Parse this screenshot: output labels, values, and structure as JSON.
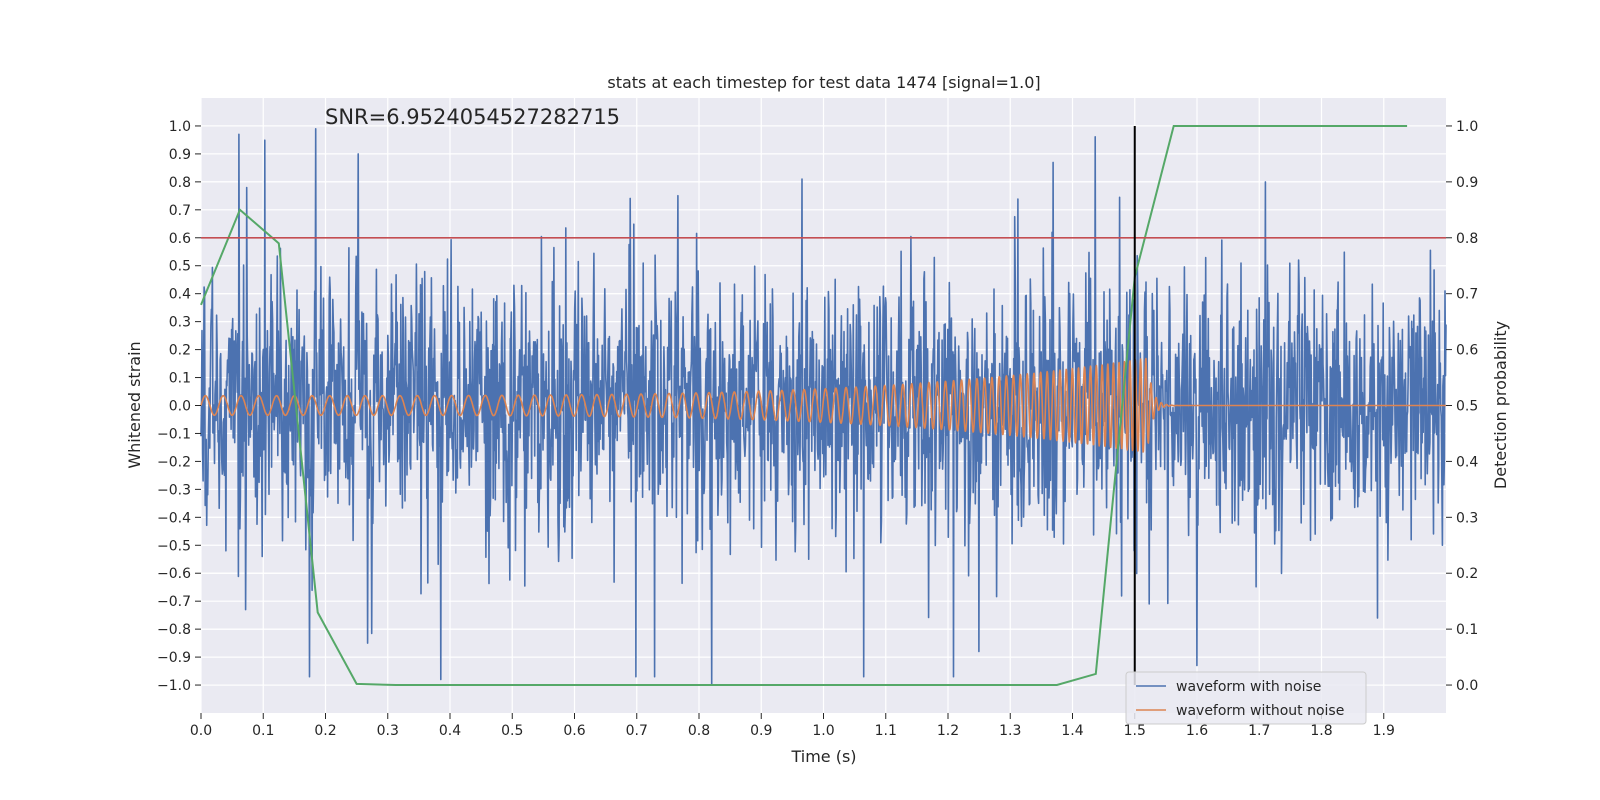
{
  "chart_data": {
    "type": "line",
    "title": "stats at each timestep for test data 1474 [signal=1.0]",
    "annotation": "SNR=6.9524054527282715",
    "xlabel": "Time (s)",
    "ylabel_left": "Whitened strain",
    "ylabel_right": "Detection probability",
    "xlim": [
      0.0,
      2.0
    ],
    "ylim_left": [
      -1.1,
      1.1
    ],
    "ylim_right": [
      -0.05,
      1.05
    ],
    "x_ticks": [
      "0.0",
      "0.1",
      "0.2",
      "0.3",
      "0.4",
      "0.5",
      "0.6",
      "0.7",
      "0.8",
      "0.9",
      "1.0",
      "1.1",
      "1.2",
      "1.3",
      "1.4",
      "1.5",
      "1.6",
      "1.7",
      "1.8",
      "1.9"
    ],
    "y_ticks_left": [
      "1.0",
      "0.9",
      "0.8",
      "0.7",
      "0.6",
      "0.5",
      "0.4",
      "0.3",
      "0.2",
      "0.1",
      "0.0",
      "−0.1",
      "−0.2",
      "−0.3",
      "−0.4",
      "−0.5",
      "−0.6",
      "−0.7",
      "−0.8",
      "−0.9",
      "−1.0"
    ],
    "y_ticks_right": [
      "1.0",
      "0.9",
      "0.8",
      "0.7",
      "0.6",
      "0.5",
      "0.4",
      "0.3",
      "0.2",
      "0.1",
      "0.0"
    ],
    "grid": true,
    "legend_position": "bottom-right",
    "threshold_line": {
      "y": 0.8,
      "axis": "right",
      "color": "#c44e52"
    },
    "vertical_marker": {
      "x": 1.5,
      "color": "#000000"
    },
    "series": [
      {
        "name": "waveform with noise",
        "axis": "left",
        "color": "#4c72b0",
        "kind": "noise",
        "amplitude": 0.22,
        "x_range": [
          0.0,
          2.0
        ],
        "peaks": [
          [
            0.184,
            0.99
          ],
          [
            0.253,
            0.9
          ],
          [
            0.073,
            0.78
          ],
          [
            0.385,
            -0.98
          ],
          [
            0.82,
            -1.0
          ],
          [
            0.965,
            0.81
          ],
          [
            1.71,
            0.8
          ],
          [
            1.6,
            -0.93
          ],
          [
            0.072,
            -0.73
          ],
          [
            0.268,
            -0.85
          ],
          [
            1.25,
            -0.88
          ],
          [
            1.89,
            -0.76
          ]
        ]
      },
      {
        "name": "waveform without noise",
        "axis": "left",
        "color": "#dd8452",
        "kind": "chirp",
        "amplitude_start": 0.035,
        "amplitude_end": 0.17,
        "frequency_start_hz": 35,
        "frequency_end_hz": 120,
        "merger_time": 1.52
      },
      {
        "name": "",
        "axis": "right",
        "color": "#55a868",
        "kind": "line",
        "x": [
          0.0,
          0.0625,
          0.125,
          0.1875,
          0.25,
          0.3125,
          0.375,
          1.0,
          1.375,
          1.4375,
          1.5,
          1.5625,
          1.9375
        ],
        "y": [
          0.68,
          0.85,
          0.79,
          0.13,
          0.002,
          0.0,
          0.0,
          0.0,
          0.0,
          0.02,
          0.73,
          1.0,
          1.0
        ]
      }
    ]
  }
}
